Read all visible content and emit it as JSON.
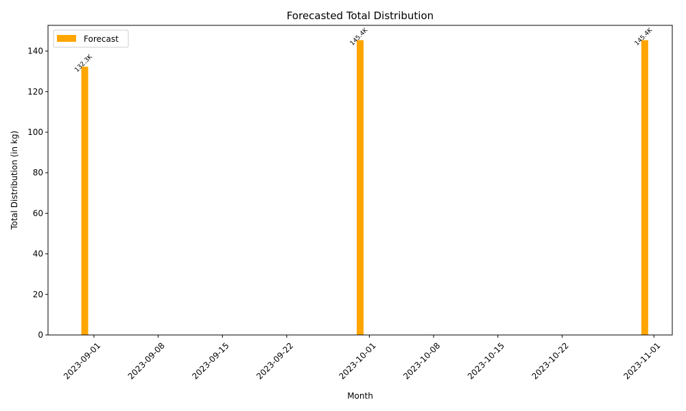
{
  "chart_data": {
    "type": "bar",
    "title": "Forecasted Total Distribution",
    "xlabel": "Month",
    "ylabel": "Total Distribution (in kg)",
    "x_type": "date",
    "xlim": [
      "2023-08-27",
      "2023-11-03"
    ],
    "ylim": [
      0,
      152.7
    ],
    "yticks": [
      0,
      20,
      40,
      60,
      80,
      100,
      120,
      140
    ],
    "xticks": [
      "2023-09-01",
      "2023-09-08",
      "2023-09-15",
      "2023-09-22",
      "2023-10-01",
      "2023-10-08",
      "2023-10-15",
      "2023-10-22",
      "2023-11-01"
    ],
    "grid": false,
    "legend_position": "top-left",
    "series": [
      {
        "name": "Forecast",
        "color": "#ffa500",
        "x": [
          "2023-08-31",
          "2023-09-30",
          "2023-10-31"
        ],
        "values": [
          132.3,
          145.4,
          145.4
        ],
        "data_labels": [
          "132.3K",
          "145.4K",
          "145.4K"
        ]
      }
    ]
  }
}
